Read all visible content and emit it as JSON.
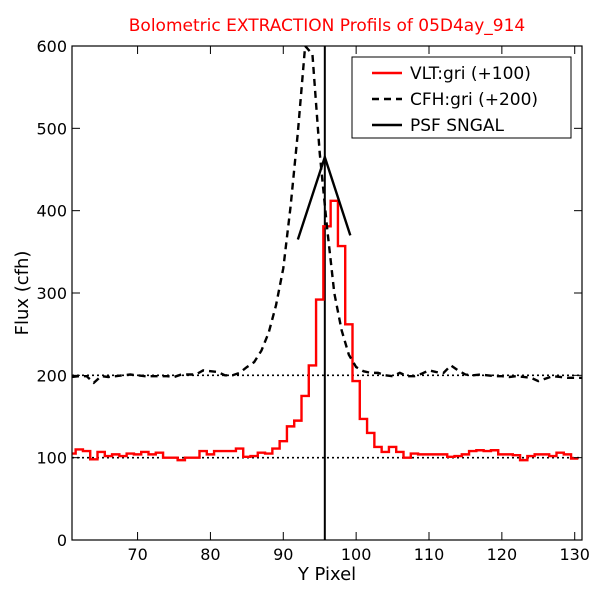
{
  "chart_data": {
    "type": "line",
    "title": "Bolometric EXTRACTION Profils of 05D4ay_914",
    "title_color": "#ff0000",
    "xlabel": "Y Pixel",
    "ylabel": "Flux (cfh)",
    "xlim": [
      61,
      131
    ],
    "ylim": [
      0,
      600
    ],
    "xticks": [
      70,
      80,
      90,
      100,
      110,
      120,
      130
    ],
    "yticks": [
      0,
      100,
      200,
      300,
      400,
      500,
      600
    ],
    "legend_position": "top-right",
    "series": [
      {
        "name": "VLT:gri (+100)",
        "style": "steps",
        "color": "#ff0000",
        "x": [
          61,
          62,
          63,
          64,
          65,
          66,
          67,
          68,
          69,
          70,
          71,
          72,
          73,
          74,
          75,
          76,
          77,
          78,
          79,
          80,
          81,
          82,
          83,
          84,
          85,
          86,
          87,
          88,
          89,
          90,
          91,
          92,
          93,
          94,
          95,
          96,
          97,
          98,
          99,
          100,
          101,
          102,
          103,
          104,
          105,
          106,
          107,
          108,
          109,
          110,
          111,
          112,
          113,
          114,
          115,
          116,
          117,
          118,
          119,
          120,
          121,
          122,
          123,
          124,
          125,
          126,
          127,
          128,
          129,
          130
        ],
        "values": [
          105,
          110,
          108,
          98,
          107,
          102,
          104,
          102,
          105,
          104,
          107,
          104,
          106,
          100,
          100,
          97,
          100,
          100,
          108,
          104,
          108,
          108,
          108,
          111,
          101,
          102,
          106,
          105,
          111,
          120,
          138,
          145,
          175,
          212,
          292,
          381,
          412,
          357,
          262,
          193,
          147,
          130,
          113,
          107,
          113,
          107,
          100,
          105,
          104,
          104,
          104,
          104,
          101,
          102,
          104,
          108,
          109,
          108,
          109,
          104,
          104,
          103,
          97,
          102,
          104,
          104,
          102,
          106,
          104,
          99
        ]
      },
      {
        "name": "CFH:gri (+200)",
        "style": "dashed",
        "color": "#000000",
        "x": [
          61,
          62,
          63,
          64,
          65,
          66,
          67,
          68,
          69,
          70,
          71,
          72,
          73,
          74,
          75,
          76,
          77,
          78,
          79,
          80,
          81,
          82,
          83,
          84,
          85,
          86,
          87,
          88,
          89,
          90,
          91,
          92,
          93,
          94,
          95,
          96,
          97,
          98,
          99,
          100,
          101,
          102,
          103,
          104,
          105,
          106,
          107,
          108,
          109,
          110,
          111,
          112,
          113,
          114,
          115,
          116,
          117,
          118,
          119,
          120,
          121,
          122,
          123,
          124,
          125,
          126,
          127,
          128,
          129,
          130,
          131
        ],
        "values": [
          198,
          199,
          199,
          191,
          199,
          198,
          199,
          200,
          201,
          200,
          199,
          199,
          199,
          199,
          198,
          201,
          201,
          201,
          206,
          205,
          204,
          200,
          200,
          203,
          210,
          216,
          230,
          252,
          285,
          330,
          405,
          495,
          600,
          590,
          470,
          380,
          300,
          255,
          225,
          210,
          205,
          203,
          203,
          200,
          199,
          203,
          199,
          199,
          202,
          206,
          204,
          203,
          212,
          206,
          201,
          200,
          201,
          200,
          199,
          199,
          198,
          199,
          198,
          197,
          193,
          196,
          199,
          198,
          197,
          197,
          197
        ]
      },
      {
        "name": "PSF SNGAL",
        "style": "solid",
        "color": "#000000",
        "x": [
          92,
          95.7,
          99.2
        ],
        "values": [
          365,
          465,
          370
        ]
      }
    ],
    "reference_lines": [
      {
        "type": "horizontal",
        "y": 100,
        "style": "dotted"
      },
      {
        "type": "horizontal",
        "y": 200,
        "style": "dotted"
      },
      {
        "type": "vertical",
        "x": 95.7,
        "style": "solid"
      }
    ]
  }
}
